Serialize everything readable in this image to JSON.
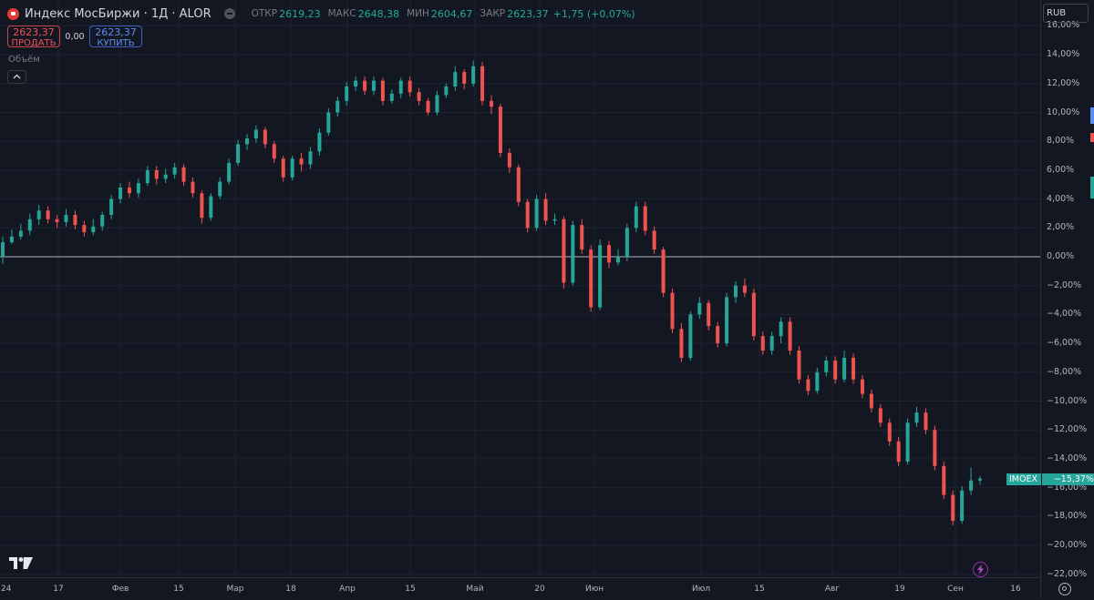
{
  "legend": {
    "title": "Индекс МосБиржи · 1Д · ALOR",
    "open_label": "ОТКР",
    "open": "2619,23",
    "high_label": "МАКС",
    "high": "2648,38",
    "low_label": "МИН",
    "low": "2604,67",
    "close_label": "ЗАКР",
    "close": "2623,37",
    "change": "+1,75 (+0,07%)"
  },
  "trade": {
    "sell_price": "2623,37",
    "sell_label": "ПРОДАТЬ",
    "spread": "0,00",
    "buy_price": "2623,37",
    "buy_label": "КУПИТЬ"
  },
  "volume_label": "Объём",
  "currency": "RUB",
  "symbol_tag": {
    "name": "IMOEX",
    "value": "−15,37%"
  },
  "colors": {
    "up": "#26a69a",
    "down": "#ef5350",
    "bg": "#131722",
    "grid": "#1f2330",
    "zero": "#b2b5be",
    "accent": "#5b8def"
  },
  "price_axis": {
    "labels": [
      "16,00%",
      "14,00%",
      "12,00%",
      "10,00%",
      "8,00%",
      "6,00%",
      "4,00%",
      "2,00%",
      "0,00%",
      "−2,00%",
      "−4,00%",
      "−6,00%",
      "−8,00%",
      "−10,00%",
      "−12,00%",
      "−14,00%",
      "−16,00%",
      "−18,00%",
      "−20,00%",
      "−22,00%"
    ]
  },
  "time_axis": {
    "labels": [
      "24",
      "17",
      "Фев",
      "15",
      "Мар",
      "18",
      "Апр",
      "15",
      "Май",
      "20",
      "Июн",
      "Июл",
      "15",
      "Авг",
      "19",
      "Сен",
      "16"
    ]
  },
  "chart_data": {
    "type": "candlestick",
    "percent_scale": true,
    "ylim": [
      -22,
      16
    ],
    "candles": [
      [
        0,
        1,
        -0.5,
        1.4
      ],
      [
        1,
        1.4,
        0.9,
        1.9
      ],
      [
        1.4,
        1.8,
        1.2,
        2.3
      ],
      [
        1.8,
        2.6,
        1.5,
        3
      ],
      [
        2.6,
        3.2,
        2.2,
        3.6
      ],
      [
        3.2,
        2.6,
        2.3,
        3.5
      ],
      [
        2.6,
        2.4,
        2,
        2.9
      ],
      [
        2.4,
        2.9,
        2.1,
        3.3
      ],
      [
        2.9,
        2.2,
        1.9,
        3.2
      ],
      [
        2.2,
        1.7,
        1.4,
        2.5
      ],
      [
        1.7,
        2.1,
        1.5,
        2.6
      ],
      [
        2.1,
        2.9,
        1.8,
        3.1
      ],
      [
        2.9,
        4,
        2.6,
        4.3
      ],
      [
        4,
        4.8,
        3.7,
        5.1
      ],
      [
        4.8,
        4.4,
        4.1,
        5.2
      ],
      [
        4.4,
        5.1,
        4.1,
        5.4
      ],
      [
        5.1,
        6,
        4.9,
        6.3
      ],
      [
        6,
        5.4,
        5,
        6.3
      ],
      [
        5.4,
        5.7,
        5.1,
        6.1
      ],
      [
        5.7,
        6.2,
        5.4,
        6.5
      ],
      [
        6.2,
        5.2,
        4.9,
        6.4
      ],
      [
        5.2,
        4.4,
        4.1,
        5.5
      ],
      [
        4.4,
        2.7,
        2.3,
        4.6
      ],
      [
        2.7,
        4.2,
        2.5,
        4.4
      ],
      [
        4.2,
        5.2,
        4,
        5.5
      ],
      [
        5.2,
        6.5,
        5,
        6.8
      ],
      [
        6.5,
        7.8,
        6.3,
        8.1
      ],
      [
        7.8,
        8.2,
        7.4,
        8.5
      ],
      [
        8.2,
        8.8,
        7.9,
        9.1
      ],
      [
        8.8,
        7.8,
        7.5,
        9
      ],
      [
        7.8,
        6.8,
        6.5,
        8
      ],
      [
        6.8,
        5.5,
        5.2,
        7
      ],
      [
        5.5,
        6.8,
        5.3,
        7
      ],
      [
        6.8,
        6.4,
        5.9,
        7.2
      ],
      [
        6.4,
        7.3,
        6.1,
        7.6
      ],
      [
        7.3,
        8.6,
        7,
        8.9
      ],
      [
        8.6,
        10,
        8.4,
        10.3
      ],
      [
        10,
        10.8,
        9.7,
        11.1
      ],
      [
        10.8,
        11.8,
        10.5,
        12.1
      ],
      [
        11.8,
        12.2,
        11.5,
        12.5
      ],
      [
        12.2,
        11.5,
        11.2,
        12.5
      ],
      [
        11.5,
        12.2,
        11.2,
        12.5
      ],
      [
        12.2,
        10.8,
        10.5,
        12.4
      ],
      [
        10.8,
        11.3,
        10.6,
        11.6
      ],
      [
        11.3,
        12.2,
        11,
        12.4
      ],
      [
        12.2,
        11.4,
        11.1,
        12.5
      ],
      [
        11.4,
        10.8,
        10.5,
        11.7
      ],
      [
        10.8,
        10,
        9.8,
        11
      ],
      [
        10,
        11.2,
        9.8,
        11.5
      ],
      [
        11.2,
        11.8,
        11,
        12
      ],
      [
        11.8,
        12.8,
        11.5,
        13.2
      ],
      [
        12.8,
        12,
        11.6,
        13
      ],
      [
        12,
        13.2,
        11.8,
        13.6
      ],
      [
        13.2,
        10.8,
        10.5,
        13.5
      ],
      [
        10.8,
        10.4,
        9.9,
        11.2
      ],
      [
        10.4,
        7.2,
        6.9,
        10.6
      ],
      [
        7.2,
        6.2,
        5.8,
        7.5
      ],
      [
        6.2,
        3.8,
        3.5,
        6.4
      ],
      [
        3.8,
        2,
        1.7,
        4
      ],
      [
        2,
        4,
        1.8,
        4.3
      ],
      [
        4,
        2.5,
        2.2,
        4.4
      ],
      [
        2.5,
        2.6,
        2.2,
        3
      ],
      [
        2.6,
        -1.8,
        -2.2,
        2.8
      ],
      [
        -1.8,
        2.2,
        -2,
        2.5
      ],
      [
        2.2,
        0.5,
        0.2,
        2.6
      ],
      [
        0.5,
        -3.5,
        -3.8,
        0.8
      ],
      [
        -3.5,
        0.8,
        -3.7,
        1.2
      ],
      [
        0.8,
        -0.4,
        -0.8,
        1.1
      ],
      [
        -0.4,
        0,
        -0.6,
        0.5
      ],
      [
        0,
        2,
        -0.3,
        2.3
      ],
      [
        2,
        3.5,
        1.7,
        3.8
      ],
      [
        3.5,
        1.8,
        1.5,
        3.8
      ],
      [
        1.8,
        0.5,
        0.2,
        2.1
      ],
      [
        0.5,
        -2.5,
        -2.8,
        0.7
      ],
      [
        -2.5,
        -5,
        -5.3,
        -2.2
      ],
      [
        -5,
        -7,
        -7.3,
        -4.6
      ],
      [
        -7,
        -4,
        -7.2,
        -3.8
      ],
      [
        -4,
        -3.2,
        -4.3,
        -2.8
      ],
      [
        -3.2,
        -4.8,
        -5.1,
        -3
      ],
      [
        -4.8,
        -6,
        -6.3,
        -4.5
      ],
      [
        -6,
        -2.8,
        -6.2,
        -2.5
      ],
      [
        -2.8,
        -2,
        -3.2,
        -1.7
      ],
      [
        -2,
        -2.5,
        -2.8,
        -1.5
      ],
      [
        -2.5,
        -5.5,
        -5.8,
        -2.2
      ],
      [
        -5.5,
        -6.5,
        -6.8,
        -5.2
      ],
      [
        -6.5,
        -5.5,
        -6.8,
        -5.2
      ],
      [
        -5.5,
        -4.5,
        -6,
        -4.2
      ],
      [
        -4.5,
        -6.5,
        -6.8,
        -4.2
      ],
      [
        -6.5,
        -8.5,
        -8.8,
        -6.2
      ],
      [
        -8.5,
        -9.3,
        -9.6,
        -8.2
      ],
      [
        -9.3,
        -8,
        -9.5,
        -7.7
      ],
      [
        -8,
        -7.2,
        -8.3,
        -6.9
      ],
      [
        -7.2,
        -8.5,
        -8.8,
        -6.9
      ],
      [
        -8.5,
        -7,
        -8.7,
        -6.5
      ],
      [
        -7,
        -8.5,
        -8.8,
        -6.7
      ],
      [
        -8.5,
        -9.5,
        -9.8,
        -8.2
      ],
      [
        -9.5,
        -10.5,
        -10.8,
        -9.2
      ],
      [
        -10.5,
        -11.5,
        -11.8,
        -10.2
      ],
      [
        -11.5,
        -12.8,
        -13.1,
        -11.2
      ],
      [
        -12.8,
        -14.2,
        -14.5,
        -12.5
      ],
      [
        -14.2,
        -11.5,
        -14.4,
        -11.2
      ],
      [
        -11.5,
        -10.8,
        -11.8,
        -10.4
      ],
      [
        -10.8,
        -12,
        -12.3,
        -10.5
      ],
      [
        -12,
        -14.5,
        -14.8,
        -11.7
      ],
      [
        -14.5,
        -16.5,
        -16.8,
        -14.2
      ],
      [
        -16.5,
        -18.3,
        -18.6,
        -16.2
      ],
      [
        -18.3,
        -16.2,
        -18.5,
        -15.9
      ],
      [
        -16.2,
        -15.5,
        -16.5,
        -14.6
      ],
      [
        -15.5,
        -15.37,
        -15.8,
        -15.2
      ]
    ]
  }
}
